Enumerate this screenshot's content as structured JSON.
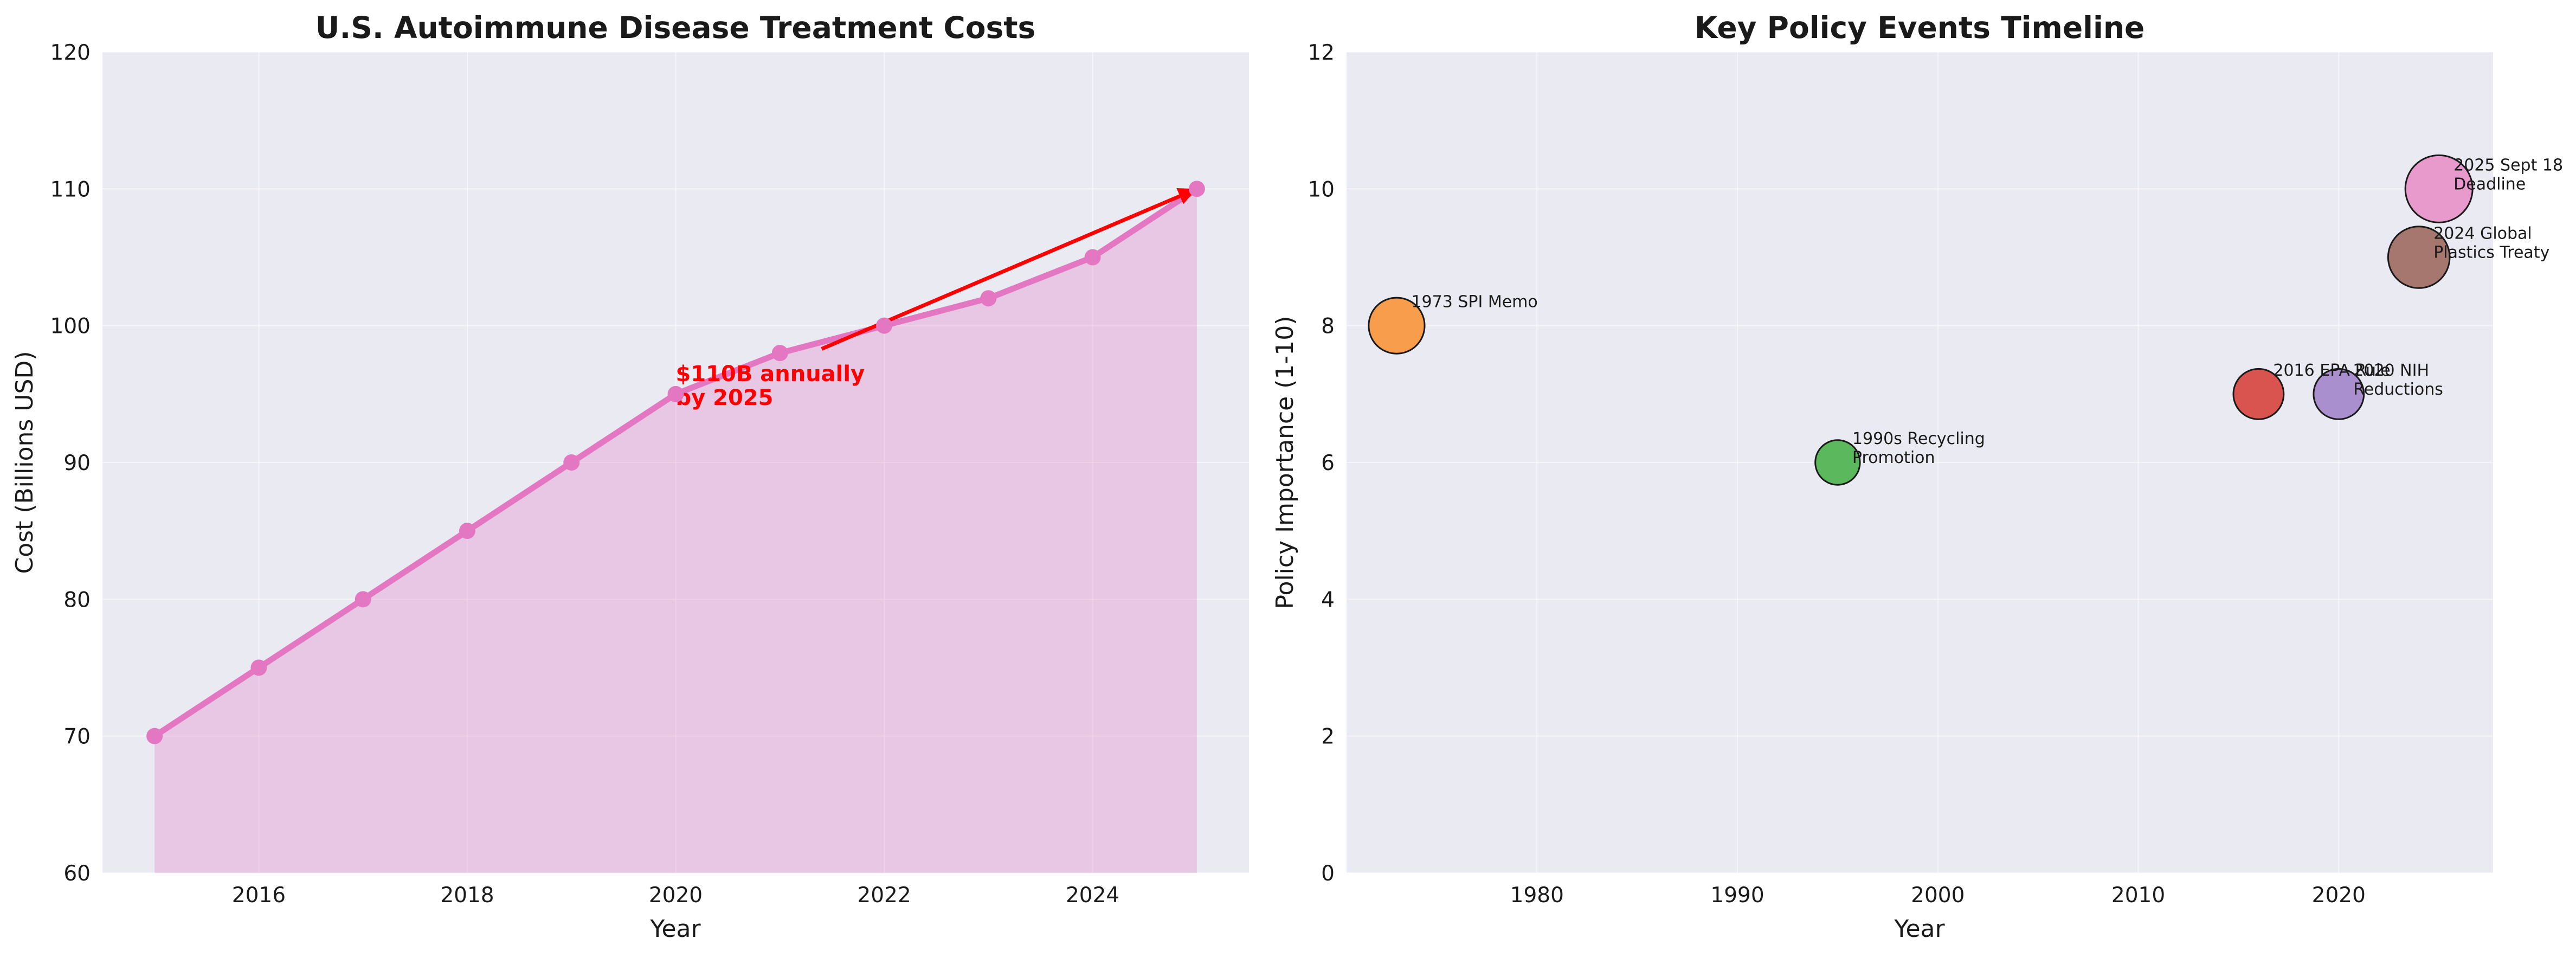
{
  "chart_data": [
    {
      "type": "area",
      "title": "U.S. Autoimmune Disease Treatment Costs",
      "xlabel": "Year",
      "ylabel": "Cost (Billions USD)",
      "xlim": [
        2014.5,
        2025.5
      ],
      "ylim": [
        60,
        120
      ],
      "xticks": [
        2016,
        2018,
        2020,
        2022,
        2024
      ],
      "yticks": [
        60,
        70,
        80,
        90,
        100,
        110,
        120
      ],
      "grid": true,
      "colors": {
        "line": "#e377c2",
        "fill": "#e377c2",
        "annotation": "#ff0000"
      },
      "x": [
        2015,
        2016,
        2017,
        2018,
        2019,
        2020,
        2021,
        2022,
        2023,
        2024,
        2025
      ],
      "values": [
        70,
        75,
        80,
        85,
        90,
        95,
        98,
        100,
        102,
        105,
        110
      ],
      "annotation": {
        "lines": [
          "$110B annually",
          "by 2025"
        ],
        "text_x": 2020,
        "text_y": 96.5,
        "arrow_from": [
          2021.4,
          98.3
        ],
        "arrow_to": [
          2025,
          110
        ]
      }
    },
    {
      "type": "scatter",
      "title": "Key Policy Events Timeline",
      "xlabel": "Year",
      "ylabel": "Policy Importance (1-10)",
      "xlim": [
        1970.5,
        2027.7
      ],
      "ylim": [
        0,
        12
      ],
      "xticks": [
        1980,
        1990,
        2000,
        2010,
        2020
      ],
      "yticks": [
        0,
        2,
        4,
        6,
        8,
        10,
        12
      ],
      "grid": true,
      "points": [
        {
          "year": 1973,
          "importance": 8,
          "lines": [
            "1973 SPI Memo"
          ],
          "color": "#f79d4c"
        },
        {
          "year": 1995,
          "importance": 6,
          "lines": [
            "1990s Recycling",
            "Promotion"
          ],
          "color": "#5cb85c"
        },
        {
          "year": 2016,
          "importance": 7,
          "lines": [
            "2016 EPA Rule"
          ],
          "color": "#d9534f"
        },
        {
          "year": 2020,
          "importance": 7,
          "lines": [
            "2020 NIH",
            "Reductions"
          ],
          "color": "#a98fcd"
        },
        {
          "year": 2024,
          "importance": 9,
          "lines": [
            "2024 Global",
            "Plastics Treaty"
          ],
          "color": "#a6776f"
        },
        {
          "year": 2025,
          "importance": 10,
          "lines": [
            "2025 Sept 18",
            "Deadline"
          ],
          "color": "#e79acb"
        }
      ]
    }
  ]
}
